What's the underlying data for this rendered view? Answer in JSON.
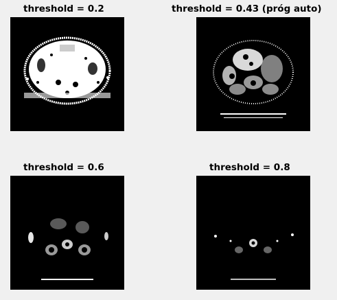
{
  "figure": {
    "background": "#f0f0f0",
    "panels": [
      {
        "title": "threshold = 0.2",
        "threshold": 0.2
      },
      {
        "title": "threshold = 0.43 (próg auto)",
        "threshold": 0.43
      },
      {
        "title": "threshold = 0.6",
        "threshold": 0.6
      },
      {
        "title": "threshold = 0.8",
        "threshold": 0.8
      }
    ]
  }
}
